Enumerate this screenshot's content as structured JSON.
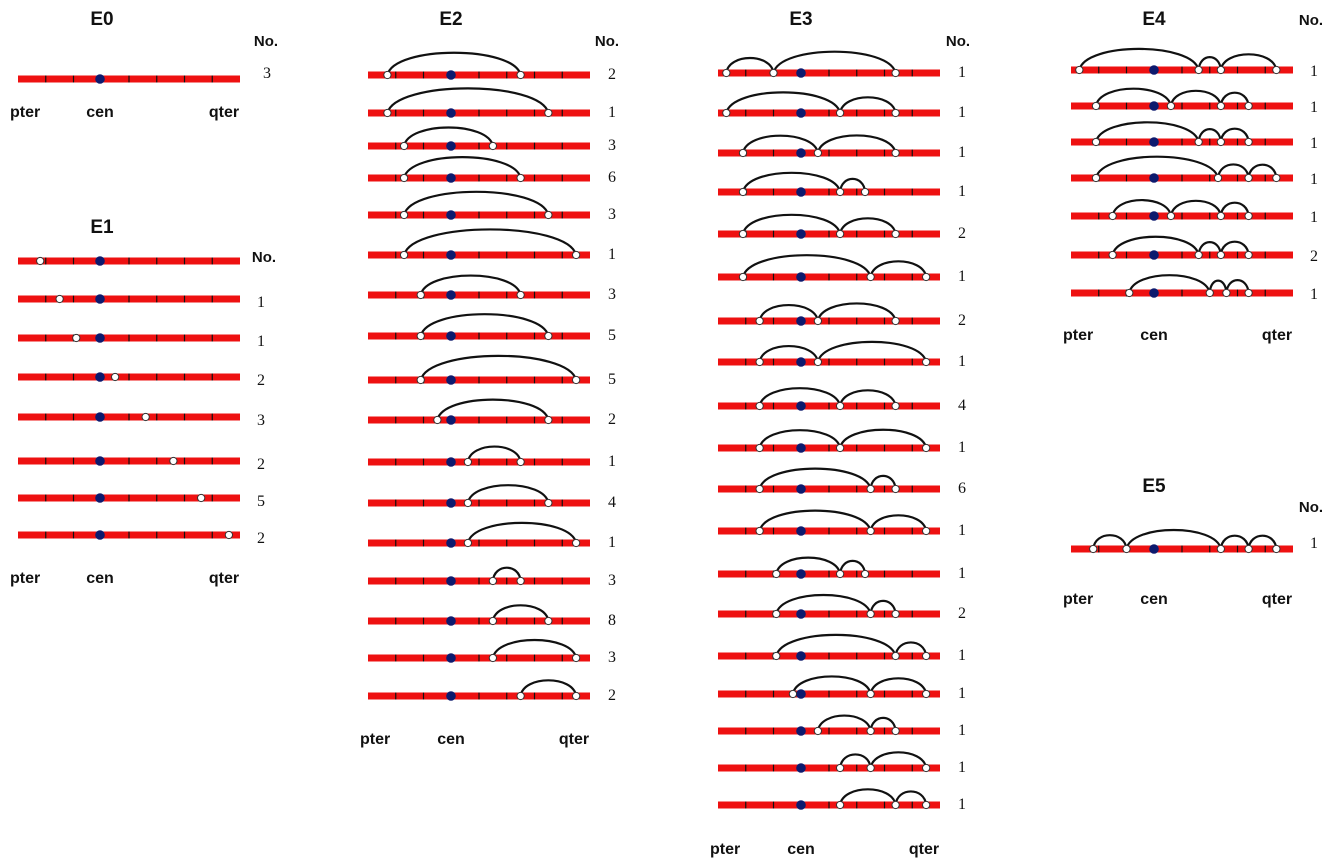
{
  "colors": {
    "chromosome": "#ee1111",
    "tick": "#111111",
    "centromere": "#0d1a6e",
    "breakpoint_fill": "#ffffff",
    "breakpoint_stroke": "#333333",
    "arc": "#111111"
  },
  "count_header": "No.",
  "axis_labels": {
    "pter": "pter",
    "cen": "cen",
    "qter": "qter"
  },
  "panels": [
    {
      "title": "E0",
      "rows": [
        {
          "count": "3",
          "breaks": [],
          "arcs": []
        }
      ]
    },
    {
      "title": "E1",
      "rows": [
        {
          "count": "",
          "breaks": [
            0.8
          ],
          "arcs": []
        },
        {
          "count": "1",
          "breaks": [
            1.5
          ],
          "arcs": []
        },
        {
          "count": "1",
          "breaks": [
            2.1
          ],
          "arcs": []
        },
        {
          "count": "2",
          "breaks": [
            3.5
          ],
          "arcs": []
        },
        {
          "count": "3",
          "breaks": [
            4.6
          ],
          "arcs": []
        },
        {
          "count": "2",
          "breaks": [
            5.6
          ],
          "arcs": []
        },
        {
          "count": "5",
          "breaks": [
            6.6
          ],
          "arcs": []
        },
        {
          "count": "2",
          "breaks": [
            7.6
          ],
          "arcs": []
        }
      ]
    },
    {
      "title": "E2",
      "rows": [
        {
          "count": "2",
          "breaks": [
            0.7,
            5.5
          ],
          "arcs": [
            [
              0.7,
              5.5
            ]
          ]
        },
        {
          "count": "1",
          "breaks": [
            0.7,
            6.5
          ],
          "arcs": [
            [
              0.7,
              6.5
            ]
          ]
        },
        {
          "count": "3",
          "breaks": [
            1.3,
            4.5
          ],
          "arcs": [
            [
              1.3,
              4.5
            ]
          ]
        },
        {
          "count": "6",
          "breaks": [
            1.3,
            5.5
          ],
          "arcs": [
            [
              1.3,
              5.5
            ]
          ]
        },
        {
          "count": "3",
          "breaks": [
            1.3,
            6.5
          ],
          "arcs": [
            [
              1.3,
              6.5
            ]
          ]
        },
        {
          "count": "1",
          "breaks": [
            1.3,
            7.5
          ],
          "arcs": [
            [
              1.3,
              7.5
            ]
          ]
        },
        {
          "count": "3",
          "breaks": [
            1.9,
            5.5
          ],
          "arcs": [
            [
              1.9,
              5.5
            ]
          ]
        },
        {
          "count": "5",
          "breaks": [
            1.9,
            6.5
          ],
          "arcs": [
            [
              1.9,
              6.5
            ]
          ]
        },
        {
          "count": "5",
          "breaks": [
            1.9,
            7.5
          ],
          "arcs": [
            [
              1.9,
              7.5
            ]
          ]
        },
        {
          "count": "2",
          "breaks": [
            2.5,
            6.5
          ],
          "arcs": [
            [
              2.5,
              6.5
            ]
          ]
        },
        {
          "count": "1",
          "breaks": [
            3.6,
            5.5
          ],
          "arcs": [
            [
              3.6,
              5.5
            ]
          ]
        },
        {
          "count": "4",
          "breaks": [
            3.6,
            6.5
          ],
          "arcs": [
            [
              3.6,
              6.5
            ]
          ]
        },
        {
          "count": "1",
          "breaks": [
            3.6,
            7.5
          ],
          "arcs": [
            [
              3.6,
              7.5
            ]
          ]
        },
        {
          "count": "3",
          "breaks": [
            4.5,
            5.5
          ],
          "arcs": [
            [
              4.5,
              5.5
            ]
          ]
        },
        {
          "count": "8",
          "breaks": [
            4.5,
            6.5
          ],
          "arcs": [
            [
              4.5,
              6.5
            ]
          ]
        },
        {
          "count": "3",
          "breaks": [
            4.5,
            7.5
          ],
          "arcs": [
            [
              4.5,
              7.5
            ]
          ]
        },
        {
          "count": "2",
          "breaks": [
            5.5,
            7.5
          ],
          "arcs": [
            [
              5.5,
              7.5
            ]
          ]
        }
      ]
    },
    {
      "title": "E3",
      "rows": [
        {
          "count": "1",
          "breaks": [
            0.3,
            2.0,
            6.4
          ],
          "arcs": [
            [
              0.3,
              2.0
            ],
            [
              2.0,
              6.4
            ]
          ]
        },
        {
          "count": "1",
          "breaks": [
            0.3,
            4.4,
            6.4
          ],
          "arcs": [
            [
              0.3,
              4.4
            ],
            [
              4.4,
              6.4
            ]
          ]
        },
        {
          "count": "1",
          "breaks": [
            0.9,
            3.6,
            6.4
          ],
          "arcs": [
            [
              0.9,
              3.6
            ],
            [
              3.6,
              6.4
            ]
          ]
        },
        {
          "count": "1",
          "breaks": [
            0.9,
            4.4,
            5.3
          ],
          "arcs": [
            [
              0.9,
              4.4
            ],
            [
              4.4,
              5.3
            ]
          ]
        },
        {
          "count": "2",
          "breaks": [
            0.9,
            4.4,
            6.4
          ],
          "arcs": [
            [
              0.9,
              4.4
            ],
            [
              4.4,
              6.4
            ]
          ]
        },
        {
          "count": "1",
          "breaks": [
            0.9,
            5.5,
            7.5
          ],
          "arcs": [
            [
              0.9,
              5.5
            ],
            [
              5.5,
              7.5
            ]
          ]
        },
        {
          "count": "2",
          "breaks": [
            1.5,
            3.6,
            6.4
          ],
          "arcs": [
            [
              1.5,
              3.6
            ],
            [
              3.6,
              6.4
            ]
          ]
        },
        {
          "count": "1",
          "breaks": [
            1.5,
            3.6,
            7.5
          ],
          "arcs": [
            [
              1.5,
              3.6
            ],
            [
              3.6,
              7.5
            ]
          ]
        },
        {
          "count": "4",
          "breaks": [
            1.5,
            4.4,
            6.4
          ],
          "arcs": [
            [
              1.5,
              4.4
            ],
            [
              4.4,
              6.4
            ]
          ]
        },
        {
          "count": "1",
          "breaks": [
            1.5,
            4.4,
            7.5
          ],
          "arcs": [
            [
              1.5,
              4.4
            ],
            [
              4.4,
              7.5
            ]
          ]
        },
        {
          "count": "6",
          "breaks": [
            1.5,
            5.5,
            6.4
          ],
          "arcs": [
            [
              1.5,
              5.5
            ],
            [
              5.5,
              6.4
            ]
          ]
        },
        {
          "count": "1",
          "breaks": [
            1.5,
            5.5,
            7.5
          ],
          "arcs": [
            [
              1.5,
              5.5
            ],
            [
              5.5,
              7.5
            ]
          ]
        },
        {
          "count": "1",
          "breaks": [
            2.1,
            4.4,
            5.3
          ],
          "arcs": [
            [
              2.1,
              4.4
            ],
            [
              4.4,
              5.3
            ]
          ]
        },
        {
          "count": "2",
          "breaks": [
            2.1,
            5.5,
            6.4
          ],
          "arcs": [
            [
              2.1,
              5.5
            ],
            [
              5.5,
              6.4
            ]
          ]
        },
        {
          "count": "1",
          "breaks": [
            2.1,
            6.4,
            7.5
          ],
          "arcs": [
            [
              2.1,
              6.4
            ],
            [
              6.4,
              7.5
            ]
          ]
        },
        {
          "count": "1",
          "breaks": [
            2.7,
            5.5,
            7.5
          ],
          "arcs": [
            [
              2.7,
              5.5
            ],
            [
              5.5,
              7.5
            ]
          ]
        },
        {
          "count": "1",
          "breaks": [
            3.6,
            5.5,
            6.4
          ],
          "arcs": [
            [
              3.6,
              5.5
            ],
            [
              5.5,
              6.4
            ]
          ]
        },
        {
          "count": "1",
          "breaks": [
            4.4,
            5.5,
            7.5
          ],
          "arcs": [
            [
              4.4,
              5.5
            ],
            [
              5.5,
              7.5
            ]
          ]
        },
        {
          "count": "1",
          "breaks": [
            4.4,
            6.4,
            7.5
          ],
          "arcs": [
            [
              4.4,
              6.4
            ],
            [
              6.4,
              7.5
            ]
          ]
        }
      ]
    },
    {
      "title": "E4",
      "rows": [
        {
          "count": "1",
          "breaks": [
            0.3,
            4.6,
            5.4,
            7.4
          ],
          "arcs": [
            [
              0.3,
              4.6
            ],
            [
              4.6,
              5.4
            ],
            [
              5.4,
              7.4
            ]
          ]
        },
        {
          "count": "1",
          "breaks": [
            0.9,
            3.6,
            5.4,
            6.4
          ],
          "arcs": [
            [
              0.9,
              3.6
            ],
            [
              3.6,
              5.4
            ],
            [
              5.4,
              6.4
            ]
          ]
        },
        {
          "count": "1",
          "breaks": [
            0.9,
            4.6,
            5.4,
            6.4
          ],
          "arcs": [
            [
              0.9,
              4.6
            ],
            [
              4.6,
              5.4
            ],
            [
              5.4,
              6.4
            ]
          ]
        },
        {
          "count": "1",
          "breaks": [
            0.9,
            5.3,
            6.4,
            7.4
          ],
          "arcs": [
            [
              0.9,
              5.3
            ],
            [
              5.3,
              6.4
            ],
            [
              6.4,
              7.4
            ]
          ]
        },
        {
          "count": "1",
          "breaks": [
            1.5,
            3.6,
            5.4,
            6.4
          ],
          "arcs": [
            [
              1.5,
              3.6
            ],
            [
              3.6,
              5.4
            ],
            [
              5.4,
              6.4
            ]
          ]
        },
        {
          "count": "2",
          "breaks": [
            1.5,
            4.6,
            5.4,
            6.4
          ],
          "arcs": [
            [
              1.5,
              4.6
            ],
            [
              4.6,
              5.4
            ],
            [
              5.4,
              6.4
            ]
          ]
        },
        {
          "count": "1",
          "breaks": [
            2.1,
            5.0,
            5.6,
            6.4
          ],
          "arcs": [
            [
              2.1,
              5.0
            ],
            [
              5.0,
              5.6
            ],
            [
              5.6,
              6.4
            ]
          ]
        }
      ]
    },
    {
      "title": "E5",
      "rows": [
        {
          "count": "1",
          "breaks": [
            0.8,
            2.0,
            5.4,
            6.4,
            7.4
          ],
          "arcs": [
            [
              0.8,
              2.0
            ],
            [
              2.0,
              5.4
            ],
            [
              5.4,
              6.4
            ],
            [
              6.4,
              7.4
            ]
          ]
        }
      ]
    }
  ]
}
